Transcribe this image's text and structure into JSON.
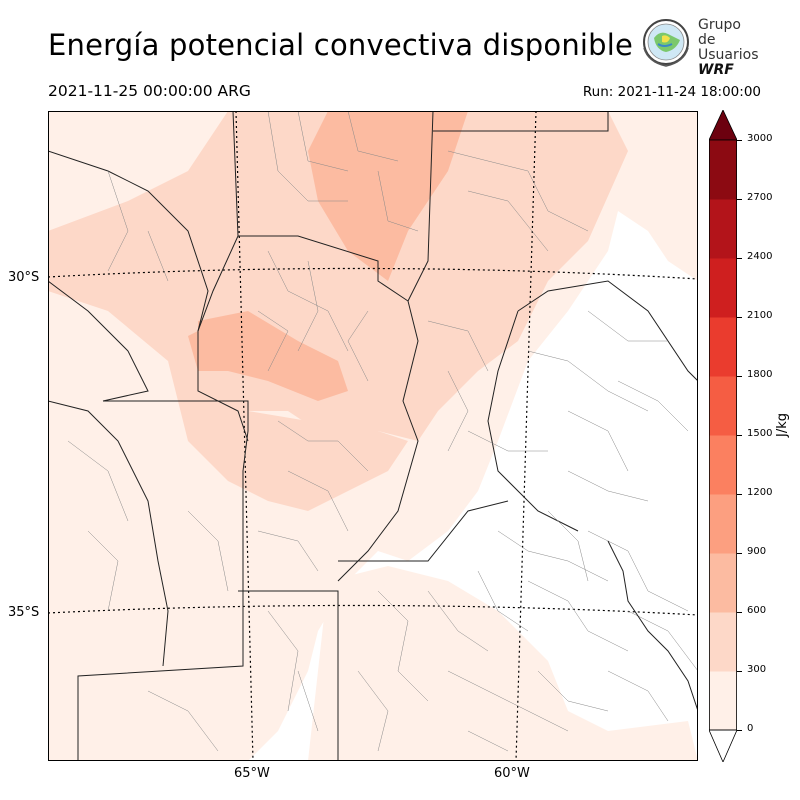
{
  "title": "Energía potencial convectiva disponible",
  "valid_time": "2021-11-25 00:00:00 ARG",
  "run_time": "Run: 2021-11-24 18:00:00",
  "logo": {
    "line1": "Grupo de",
    "line2": "Usuarios",
    "line3": "WRF"
  },
  "map": {
    "lat_labels": [
      "30°S",
      "35°S"
    ],
    "lon_labels": [
      "65°W",
      "60°W"
    ],
    "field": "CAPE"
  },
  "colorbar": {
    "unit": "J/kg",
    "ticks": [
      "0",
      "300",
      "600",
      "900",
      "1200",
      "1500",
      "1800",
      "2100",
      "2400",
      "2700",
      "3000"
    ],
    "colors": [
      "#fff0e8",
      "#fdd8c8",
      "#fcbba1",
      "#fc9f80",
      "#fb8060",
      "#f55d43",
      "#ea3c2e",
      "#cf1f1f",
      "#b3141a",
      "#8c0a12",
      "#6c010f"
    ],
    "extend": "both"
  }
}
